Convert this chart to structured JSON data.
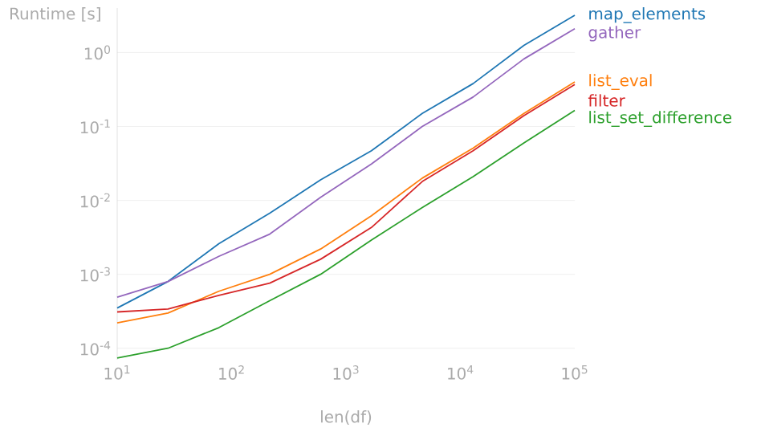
{
  "chart_data": {
    "type": "line",
    "xlabel": "len(df)",
    "ylabel": "Runtime [s]",
    "x": [
      10,
      27.8,
      77.4,
      215.4,
      599.5,
      1668,
      4642,
      12915,
      35938,
      100000
    ],
    "series": [
      {
        "name": "map_elements",
        "color": "#1f77b4",
        "values": [
          0.00035,
          0.0008,
          0.0026,
          0.0067,
          0.019,
          0.047,
          0.15,
          0.38,
          1.25,
          3.2
        ]
      },
      {
        "name": "gather",
        "color": "#9467bd",
        "values": [
          0.00049,
          0.0008,
          0.00175,
          0.0035,
          0.011,
          0.031,
          0.1,
          0.25,
          0.82,
          2.1
        ]
      },
      {
        "name": "list_eval",
        "color": "#ff7f0e",
        "values": [
          0.00022,
          0.0003,
          0.00059,
          0.001,
          0.0022,
          0.0062,
          0.02,
          0.051,
          0.15,
          0.4
        ]
      },
      {
        "name": "filter",
        "color": "#d62728",
        "values": [
          0.00031,
          0.00034,
          0.00052,
          0.00076,
          0.0016,
          0.0043,
          0.018,
          0.047,
          0.14,
          0.37
        ]
      },
      {
        "name": "list_set_difference",
        "color": "#2ca02c",
        "values": [
          7.4e-05,
          0.0001,
          0.00019,
          0.00044,
          0.001,
          0.0029,
          0.008,
          0.021,
          0.06,
          0.165
        ]
      }
    ],
    "xlim": [
      10,
      100000
    ],
    "ylim": [
      7e-05,
      4
    ],
    "xticks": [
      {
        "value": 10,
        "label": "10$^{1}$"
      },
      {
        "value": 100,
        "label": "10$^{2}$"
      },
      {
        "value": 1000,
        "label": "10$^{3}$"
      },
      {
        "value": 10000,
        "label": "10$^{4}$"
      },
      {
        "value": 100000,
        "label": "10$^{5}$"
      }
    ],
    "yticks": [
      {
        "value": 0.0001,
        "label": "10$^{-4}$"
      },
      {
        "value": 0.001,
        "label": "10$^{-3}$"
      },
      {
        "value": 0.01,
        "label": "10$^{-2}$"
      },
      {
        "value": 0.1,
        "label": "10$^{-1}$"
      },
      {
        "value": 1,
        "label": "10$^{0}$"
      }
    ],
    "log": "xy",
    "grid": "y",
    "legend": false,
    "marker": "none",
    "line_style": "solid"
  }
}
